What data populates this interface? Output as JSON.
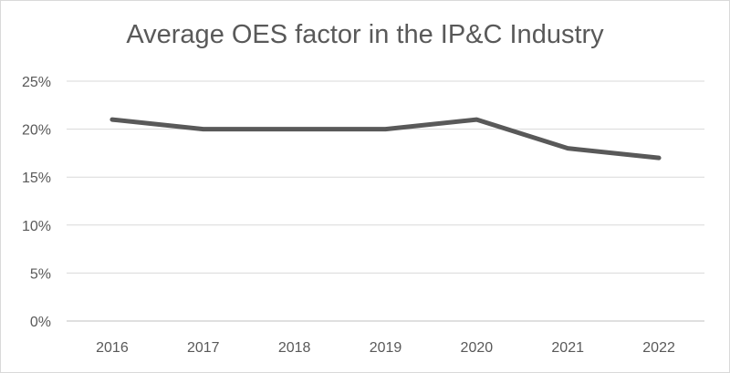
{
  "chart_data": {
    "type": "line",
    "title": "Average OES factor in the IP&C Industry",
    "xlabel": "",
    "ylabel": "",
    "categories": [
      "2016",
      "2017",
      "2018",
      "2019",
      "2020",
      "2021",
      "2022"
    ],
    "series": [
      {
        "name": "Average OES factor",
        "values": [
          21,
          20,
          20,
          20,
          21,
          18,
          17
        ],
        "color": "#595959"
      }
    ],
    "ylim": [
      0,
      25
    ],
    "yticks": [
      0,
      5,
      10,
      15,
      20,
      25
    ],
    "ytick_labels": [
      "0%",
      "5%",
      "10%",
      "15%",
      "20%",
      "25%"
    ],
    "grid": true,
    "legend": "none"
  }
}
